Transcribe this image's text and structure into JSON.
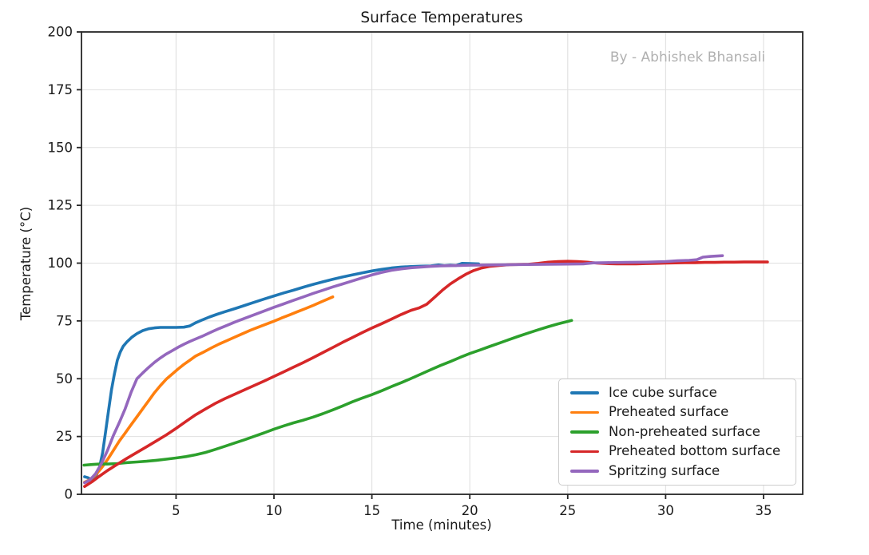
{
  "figure": {
    "watermark": "By - Abhishek Bhansali"
  },
  "chart_data": {
    "type": "line",
    "title": "Surface Temperatures",
    "xlabel": "Time (minutes)",
    "ylabel": "Temperature (°C)",
    "xlim": [
      0.17,
      37.0
    ],
    "ylim": [
      0,
      200
    ],
    "xticks": [
      5,
      10,
      15,
      20,
      25,
      30,
      35
    ],
    "yticks": [
      0,
      25,
      50,
      75,
      100,
      125,
      150,
      175,
      200
    ],
    "grid": true,
    "grid_color": "#e0e0e0",
    "spine_color": "#262626",
    "text_color": "#1a1a1a",
    "watermark_color": "#b0b0b0",
    "background": "#ffffff",
    "legend_position": "lower right",
    "line_width": 3.6,
    "series": [
      {
        "name": "Ice cube surface",
        "color": "#1f77b4",
        "points": [
          [
            0.33,
            7.6
          ],
          [
            0.5,
            7.2
          ],
          [
            0.65,
            6.4
          ],
          [
            0.8,
            6.8
          ],
          [
            0.95,
            8.5
          ],
          [
            1.1,
            12
          ],
          [
            1.25,
            18
          ],
          [
            1.4,
            27
          ],
          [
            1.55,
            36
          ],
          [
            1.7,
            45
          ],
          [
            1.85,
            52
          ],
          [
            2.0,
            58
          ],
          [
            2.15,
            61.5
          ],
          [
            2.3,
            64
          ],
          [
            2.5,
            66
          ],
          [
            2.75,
            68
          ],
          [
            3.0,
            69.5
          ],
          [
            3.3,
            70.8
          ],
          [
            3.6,
            71.6
          ],
          [
            3.9,
            72.0
          ],
          [
            4.2,
            72.2
          ],
          [
            4.6,
            72.2
          ],
          [
            5.0,
            72.2
          ],
          [
            5.4,
            72.3
          ],
          [
            5.7,
            72.8
          ],
          [
            6.0,
            74.2
          ],
          [
            6.3,
            75.3
          ],
          [
            6.7,
            76.7
          ],
          [
            7.1,
            77.9
          ],
          [
            7.5,
            79.0
          ],
          [
            8.0,
            80.3
          ],
          [
            8.5,
            81.7
          ],
          [
            9.0,
            83.1
          ],
          [
            9.5,
            84.5
          ],
          [
            10.0,
            85.8
          ],
          [
            10.5,
            87.1
          ],
          [
            11.0,
            88.3
          ],
          [
            11.5,
            89.6
          ],
          [
            12.0,
            90.8
          ],
          [
            12.5,
            91.9
          ],
          [
            13.0,
            93.0
          ],
          [
            13.5,
            94.0
          ],
          [
            14.0,
            94.9
          ],
          [
            14.5,
            95.8
          ],
          [
            15.0,
            96.6
          ],
          [
            15.5,
            97.3
          ],
          [
            16.0,
            97.9
          ],
          [
            16.5,
            98.3
          ],
          [
            17.0,
            98.5
          ],
          [
            17.5,
            98.7
          ],
          [
            18.0,
            98.8
          ],
          [
            18.4,
            99.2
          ],
          [
            18.7,
            98.9
          ],
          [
            19.0,
            99.1
          ],
          [
            19.3,
            99.0
          ],
          [
            19.6,
            99.9
          ],
          [
            20.0,
            99.8
          ],
          [
            20.45,
            99.7
          ]
        ]
      },
      {
        "name": "Preheated surface",
        "color": "#ff7f0e",
        "points": [
          [
            0.33,
            5.2
          ],
          [
            0.6,
            6.3
          ],
          [
            0.9,
            8.5
          ],
          [
            1.2,
            11.5
          ],
          [
            1.5,
            15
          ],
          [
            1.8,
            19
          ],
          [
            2.1,
            23
          ],
          [
            2.4,
            26.5
          ],
          [
            2.7,
            30
          ],
          [
            3.0,
            33.5
          ],
          [
            3.3,
            37
          ],
          [
            3.6,
            40.5
          ],
          [
            3.9,
            44
          ],
          [
            4.2,
            47
          ],
          [
            4.5,
            49.8
          ],
          [
            4.8,
            52
          ],
          [
            5.1,
            54.2
          ],
          [
            5.4,
            56.2
          ],
          [
            5.7,
            58
          ],
          [
            6.0,
            59.8
          ],
          [
            6.4,
            61.5
          ],
          [
            6.8,
            63.3
          ],
          [
            7.2,
            65
          ],
          [
            7.6,
            66.5
          ],
          [
            8.0,
            68
          ],
          [
            8.4,
            69.5
          ],
          [
            8.8,
            71
          ],
          [
            9.2,
            72.3
          ],
          [
            9.6,
            73.6
          ],
          [
            10.0,
            74.9
          ],
          [
            10.4,
            76.3
          ],
          [
            10.8,
            77.6
          ],
          [
            11.2,
            79
          ],
          [
            11.6,
            80.3
          ],
          [
            12.0,
            81.7
          ],
          [
            12.4,
            83.2
          ],
          [
            12.7,
            84.3
          ],
          [
            13.0,
            85.4
          ]
        ]
      },
      {
        "name": "Non-preheated surface",
        "color": "#2ca02c",
        "points": [
          [
            0.3,
            12.6
          ],
          [
            0.7,
            12.9
          ],
          [
            1.1,
            13.1
          ],
          [
            1.5,
            13.1
          ],
          [
            2.0,
            13.3
          ],
          [
            2.5,
            13.7
          ],
          [
            3.0,
            14.0
          ],
          [
            3.5,
            14.3
          ],
          [
            4.0,
            14.7
          ],
          [
            4.5,
            15.2
          ],
          [
            5.0,
            15.7
          ],
          [
            5.5,
            16.3
          ],
          [
            6.0,
            17.1
          ],
          [
            6.5,
            18.1
          ],
          [
            7.0,
            19.4
          ],
          [
            7.5,
            20.8
          ],
          [
            8.0,
            22.2
          ],
          [
            8.5,
            23.6
          ],
          [
            9.0,
            25.1
          ],
          [
            9.5,
            26.6
          ],
          [
            10.0,
            28.2
          ],
          [
            10.5,
            29.6
          ],
          [
            11.0,
            30.9
          ],
          [
            11.5,
            32.1
          ],
          [
            12.0,
            33.4
          ],
          [
            12.5,
            34.9
          ],
          [
            13.0,
            36.5
          ],
          [
            13.5,
            38.2
          ],
          [
            14.0,
            40.0
          ],
          [
            14.5,
            41.6
          ],
          [
            15.0,
            43.1
          ],
          [
            15.5,
            44.8
          ],
          [
            16.0,
            46.6
          ],
          [
            16.5,
            48.3
          ],
          [
            17.0,
            50.1
          ],
          [
            17.5,
            52.0
          ],
          [
            18.0,
            53.9
          ],
          [
            18.5,
            55.7
          ],
          [
            19.0,
            57.4
          ],
          [
            19.5,
            59.2
          ],
          [
            20.0,
            60.9
          ],
          [
            20.5,
            62.4
          ],
          [
            21.0,
            63.9
          ],
          [
            21.5,
            65.4
          ],
          [
            22.0,
            66.9
          ],
          [
            22.5,
            68.4
          ],
          [
            23.0,
            69.8
          ],
          [
            23.5,
            71.2
          ],
          [
            24.0,
            72.5
          ],
          [
            24.5,
            73.7
          ],
          [
            25.2,
            75.2
          ]
        ]
      },
      {
        "name": "Preheated bottom surface",
        "color": "#d62728",
        "points": [
          [
            0.33,
            3.4
          ],
          [
            0.7,
            5.4
          ],
          [
            1.0,
            7.3
          ],
          [
            1.5,
            10.3
          ],
          [
            2.0,
            13.0
          ],
          [
            2.5,
            15.6
          ],
          [
            3.0,
            18.1
          ],
          [
            3.5,
            20.6
          ],
          [
            4.0,
            23.1
          ],
          [
            4.5,
            25.7
          ],
          [
            5.0,
            28.5
          ],
          [
            5.5,
            31.5
          ],
          [
            6.0,
            34.4
          ],
          [
            6.5,
            36.9
          ],
          [
            7.0,
            39.3
          ],
          [
            7.5,
            41.4
          ],
          [
            8.0,
            43.3
          ],
          [
            8.5,
            45.2
          ],
          [
            9.0,
            47.1
          ],
          [
            9.5,
            49.0
          ],
          [
            10.0,
            51.0
          ],
          [
            10.5,
            53.0
          ],
          [
            11.0,
            55.0
          ],
          [
            11.5,
            57.0
          ],
          [
            12.0,
            59.1
          ],
          [
            12.5,
            61.3
          ],
          [
            13.0,
            63.5
          ],
          [
            13.5,
            65.7
          ],
          [
            14.0,
            67.8
          ],
          [
            14.5,
            69.9
          ],
          [
            15.0,
            71.9
          ],
          [
            15.5,
            73.8
          ],
          [
            16.0,
            75.8
          ],
          [
            16.5,
            77.8
          ],
          [
            17.0,
            79.6
          ],
          [
            17.4,
            80.6
          ],
          [
            17.8,
            82.2
          ],
          [
            18.2,
            85.2
          ],
          [
            18.6,
            88.3
          ],
          [
            19.0,
            91.0
          ],
          [
            19.4,
            93.2
          ],
          [
            19.8,
            95.2
          ],
          [
            20.2,
            96.8
          ],
          [
            20.6,
            97.9
          ],
          [
            21.0,
            98.6
          ],
          [
            21.5,
            99.0
          ],
          [
            22.0,
            99.3
          ],
          [
            22.5,
            99.4
          ],
          [
            23.0,
            99.5
          ],
          [
            23.5,
            99.9
          ],
          [
            24.0,
            100.4
          ],
          [
            24.5,
            100.7
          ],
          [
            25.0,
            100.8
          ],
          [
            25.5,
            100.7
          ],
          [
            26.0,
            100.4
          ],
          [
            26.5,
            100.0
          ],
          [
            27.0,
            99.8
          ],
          [
            27.5,
            99.7
          ],
          [
            28.0,
            99.7
          ],
          [
            28.5,
            99.7
          ],
          [
            29.0,
            99.8
          ],
          [
            29.5,
            99.9
          ],
          [
            30.0,
            100.0
          ],
          [
            30.5,
            100.1
          ],
          [
            31.0,
            100.2
          ],
          [
            31.5,
            100.2
          ],
          [
            32.0,
            100.3
          ],
          [
            32.5,
            100.3
          ],
          [
            33.0,
            100.4
          ],
          [
            33.5,
            100.4
          ],
          [
            34.0,
            100.5
          ],
          [
            34.5,
            100.5
          ],
          [
            35.2,
            100.5
          ]
        ]
      },
      {
        "name": "Spritzing surface",
        "color": "#9467bd",
        "points": [
          [
            0.33,
            5.0
          ],
          [
            0.6,
            6.2
          ],
          [
            0.9,
            9.0
          ],
          [
            1.2,
            13.5
          ],
          [
            1.5,
            19.0
          ],
          [
            1.8,
            25.5
          ],
          [
            2.1,
            31.0
          ],
          [
            2.4,
            37.0
          ],
          [
            2.7,
            44.0
          ],
          [
            3.0,
            50.0
          ],
          [
            3.3,
            52.5
          ],
          [
            3.6,
            54.9
          ],
          [
            3.9,
            57.1
          ],
          [
            4.2,
            59.0
          ],
          [
            4.5,
            60.7
          ],
          [
            4.8,
            62.1
          ],
          [
            5.1,
            63.6
          ],
          [
            5.4,
            64.9
          ],
          [
            5.7,
            66.1
          ],
          [
            6.0,
            67.2
          ],
          [
            6.4,
            68.6
          ],
          [
            6.8,
            70.2
          ],
          [
            7.2,
            71.7
          ],
          [
            7.6,
            73.1
          ],
          [
            8.0,
            74.5
          ],
          [
            8.5,
            76.1
          ],
          [
            9.0,
            77.7
          ],
          [
            9.5,
            79.3
          ],
          [
            10.0,
            80.9
          ],
          [
            10.5,
            82.4
          ],
          [
            11.0,
            83.9
          ],
          [
            11.5,
            85.4
          ],
          [
            12.0,
            86.9
          ],
          [
            12.5,
            88.3
          ],
          [
            13.0,
            89.7
          ],
          [
            13.5,
            91.0
          ],
          [
            14.0,
            92.3
          ],
          [
            14.5,
            93.6
          ],
          [
            15.0,
            94.9
          ],
          [
            15.5,
            96.0
          ],
          [
            16.0,
            96.9
          ],
          [
            16.5,
            97.5
          ],
          [
            17.0,
            98.0
          ],
          [
            17.5,
            98.3
          ],
          [
            18.0,
            98.6
          ],
          [
            18.5,
            98.8
          ],
          [
            19.0,
            98.9
          ],
          [
            19.5,
            99.0
          ],
          [
            20.0,
            99.1
          ],
          [
            21.0,
            99.2
          ],
          [
            22.0,
            99.3
          ],
          [
            23.0,
            99.4
          ],
          [
            24.0,
            99.5
          ],
          [
            25.0,
            99.6
          ],
          [
            25.8,
            99.7
          ],
          [
            26.3,
            100.1
          ],
          [
            27.0,
            100.2
          ],
          [
            28.0,
            100.3
          ],
          [
            29.0,
            100.4
          ],
          [
            30.0,
            100.7
          ],
          [
            30.6,
            101.0
          ],
          [
            31.2,
            101.2
          ],
          [
            31.6,
            101.5
          ],
          [
            31.9,
            102.6
          ],
          [
            32.3,
            102.9
          ],
          [
            32.9,
            103.2
          ]
        ]
      }
    ]
  }
}
